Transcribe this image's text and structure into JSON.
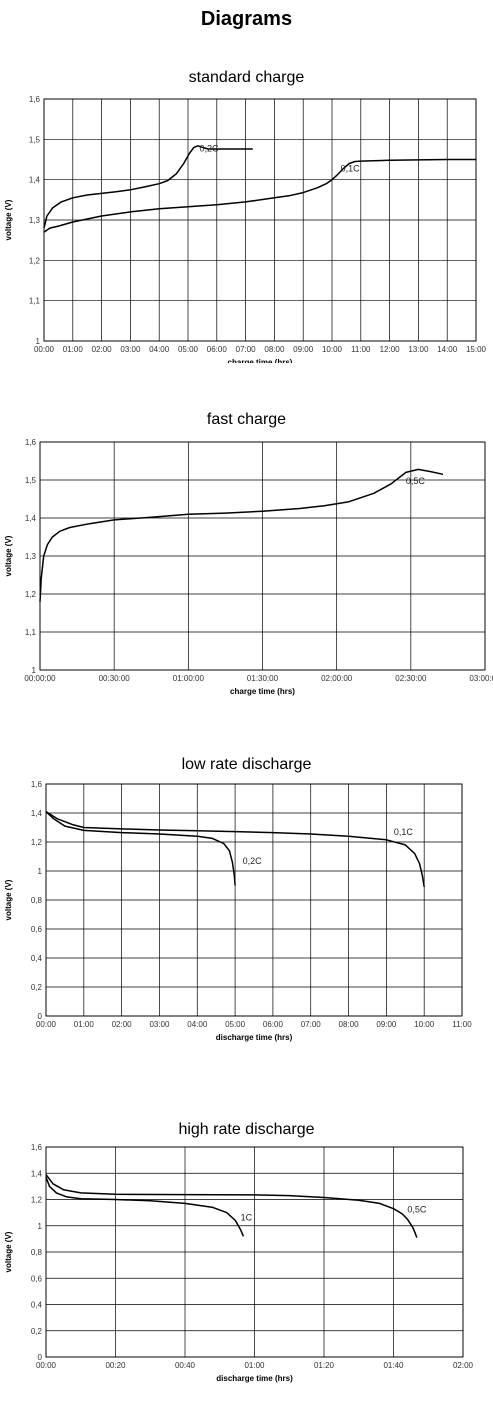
{
  "page": {
    "title": "Diagrams"
  },
  "chart_data": [
    {
      "type": "line",
      "title": "standard charge",
      "xlabel": "charge time (hrs)",
      "ylabel": "voltage (V)",
      "xlim": [
        0,
        15
      ],
      "ylim": [
        1,
        1.6
      ],
      "grid": true,
      "xticks": [
        0,
        1,
        2,
        3,
        4,
        5,
        6,
        7,
        8,
        9,
        10,
        11,
        12,
        13,
        14,
        15
      ],
      "xtick_labels": [
        "00:00",
        "01:00",
        "02:00",
        "03:00",
        "04:00",
        "05:00",
        "06:00",
        "07:00",
        "08:00",
        "09:00",
        "10:00",
        "11:00",
        "12:00",
        "13:00",
        "14:00",
        "15:00"
      ],
      "yticks": [
        1,
        1.1,
        1.2,
        1.3,
        1.4,
        1.5,
        1.6
      ],
      "ytick_labels": [
        "1",
        "1,1",
        "1,2",
        "1,3",
        "1,4",
        "1,5",
        "1,6"
      ],
      "series": [
        {
          "name": "0,2C",
          "label_at": [
            5.4,
            1.47
          ],
          "x": [
            0,
            0.1,
            0.3,
            0.6,
            1,
            1.5,
            2,
            2.5,
            3,
            3.5,
            4,
            4.3,
            4.6,
            4.85,
            5.05,
            5.2,
            5.35,
            5.5,
            5.7,
            6,
            6.5,
            7.25
          ],
          "y": [
            1.28,
            1.31,
            1.33,
            1.345,
            1.355,
            1.362,
            1.366,
            1.37,
            1.375,
            1.382,
            1.39,
            1.398,
            1.415,
            1.44,
            1.465,
            1.48,
            1.484,
            1.48,
            1.476,
            1.476,
            1.476,
            1.476
          ]
        },
        {
          "name": "0,1C",
          "label_at": [
            10.3,
            1.42
          ],
          "x": [
            0,
            0.2,
            0.5,
            1,
            2,
            3,
            4,
            5,
            6,
            7,
            8,
            8.5,
            9,
            9.5,
            9.8,
            10,
            10.2,
            10.4,
            10.6,
            10.8,
            11,
            12,
            13,
            14,
            15
          ],
          "y": [
            1.27,
            1.28,
            1.285,
            1.295,
            1.31,
            1.32,
            1.328,
            1.333,
            1.338,
            1.345,
            1.355,
            1.36,
            1.368,
            1.38,
            1.39,
            1.4,
            1.413,
            1.428,
            1.44,
            1.445,
            1.446,
            1.448,
            1.449,
            1.45,
            1.45
          ]
        }
      ]
    },
    {
      "type": "line",
      "title": "fast charge",
      "xlabel": "charge time (hrs)",
      "ylabel": "voltage (V)",
      "xlim": [
        0,
        180
      ],
      "ylim": [
        1,
        1.6
      ],
      "grid": true,
      "xticks": [
        0,
        30,
        60,
        90,
        120,
        150,
        180
      ],
      "xtick_labels": [
        "00:00:00",
        "00:30:00",
        "01:00:00",
        "01:30:00",
        "02:00:00",
        "02:30:00",
        "03:00:00"
      ],
      "yticks": [
        1,
        1.1,
        1.2,
        1.3,
        1.4,
        1.5,
        1.6
      ],
      "ytick_labels": [
        "1",
        "1,1",
        "1,2",
        "1,3",
        "1,4",
        "1,5",
        "1,6"
      ],
      "series": [
        {
          "name": "0,5C",
          "label_at": [
            148,
            1.49
          ],
          "x": [
            0,
            0.5,
            1.5,
            3,
            5,
            8,
            12,
            20,
            30,
            45,
            60,
            75,
            90,
            105,
            115,
            125,
            135,
            142,
            148,
            153,
            158,
            163
          ],
          "y": [
            1.18,
            1.24,
            1.3,
            1.33,
            1.35,
            1.365,
            1.375,
            1.385,
            1.395,
            1.402,
            1.41,
            1.413,
            1.418,
            1.425,
            1.432,
            1.443,
            1.465,
            1.49,
            1.52,
            1.528,
            1.522,
            1.515
          ]
        }
      ]
    },
    {
      "type": "line",
      "title": "low rate discharge",
      "xlabel": "discharge time (hrs)",
      "ylabel": "voltage (V)",
      "xlim": [
        0,
        11
      ],
      "ylim": [
        0,
        1.6
      ],
      "grid": true,
      "xticks": [
        0,
        1,
        2,
        3,
        4,
        5,
        6,
        7,
        8,
        9,
        10,
        11
      ],
      "xtick_labels": [
        "00:00",
        "01:00",
        "02:00",
        "03:00",
        "04:00",
        "05:00",
        "06:00",
        "07:00",
        "08:00",
        "09:00",
        "10:00",
        "11:00"
      ],
      "yticks": [
        0,
        0.2,
        0.4,
        0.6,
        0.8,
        1,
        1.2,
        1.4,
        1.6
      ],
      "ytick_labels": [
        "0",
        "0,2",
        "0,4",
        "0,6",
        "0,8",
        "1",
        "1,2",
        "1,4",
        "1,6"
      ],
      "series": [
        {
          "name": "0,2C",
          "label_at": [
            5.2,
            1.05
          ],
          "x": [
            0,
            0.2,
            0.5,
            1,
            2,
            3,
            4,
            4.4,
            4.7,
            4.85,
            4.93,
            4.98,
            5.0
          ],
          "y": [
            1.41,
            1.36,
            1.31,
            1.28,
            1.265,
            1.255,
            1.24,
            1.225,
            1.19,
            1.14,
            1.06,
            0.97,
            0.9
          ]
        },
        {
          "name": "0,1C",
          "label_at": [
            9.2,
            1.25
          ],
          "x": [
            0,
            0.3,
            0.7,
            1,
            2,
            3,
            4,
            5,
            6,
            7,
            8,
            9,
            9.5,
            9.75,
            9.88,
            9.95,
            10.0
          ],
          "y": [
            1.41,
            1.36,
            1.32,
            1.3,
            1.29,
            1.283,
            1.278,
            1.272,
            1.265,
            1.255,
            1.24,
            1.215,
            1.18,
            1.12,
            1.05,
            0.97,
            0.89
          ]
        }
      ]
    },
    {
      "type": "line",
      "title": "high rate discharge",
      "xlabel": "discharge time (hrs)",
      "ylabel": "voltage (V)",
      "xlim": [
        0,
        120
      ],
      "ylim": [
        0,
        1.6
      ],
      "grid": true,
      "xticks": [
        0,
        20,
        40,
        60,
        80,
        100,
        120
      ],
      "xtick_labels": [
        "00:00",
        "00:20",
        "00:40",
        "01:00",
        "01:20",
        "01:40",
        "02:00"
      ],
      "yticks": [
        0,
        0.2,
        0.4,
        0.6,
        0.8,
        1,
        1.2,
        1.4,
        1.6
      ],
      "ytick_labels": [
        "0",
        "0,2",
        "0,4",
        "0,6",
        "0,8",
        "1",
        "1,2",
        "1,4",
        "1,6"
      ],
      "series": [
        {
          "name": "1C",
          "label_at": [
            56,
            1.04
          ],
          "x": [
            0,
            1,
            3,
            6,
            10,
            20,
            30,
            40,
            48,
            52,
            54.5,
            56,
            56.8
          ],
          "y": [
            1.37,
            1.3,
            1.25,
            1.22,
            1.205,
            1.2,
            1.19,
            1.17,
            1.14,
            1.1,
            1.04,
            0.97,
            0.92
          ]
        },
        {
          "name": "0,5C",
          "label_at": [
            104,
            1.1
          ],
          "x": [
            0,
            2,
            5,
            10,
            20,
            40,
            60,
            70,
            80,
            90,
            96,
            100,
            102.5,
            104,
            105.5,
            106.3,
            106.7
          ],
          "y": [
            1.39,
            1.32,
            1.275,
            1.25,
            1.24,
            1.237,
            1.235,
            1.23,
            1.215,
            1.195,
            1.17,
            1.13,
            1.09,
            1.05,
            0.99,
            0.94,
            0.91
          ]
        }
      ]
    }
  ]
}
